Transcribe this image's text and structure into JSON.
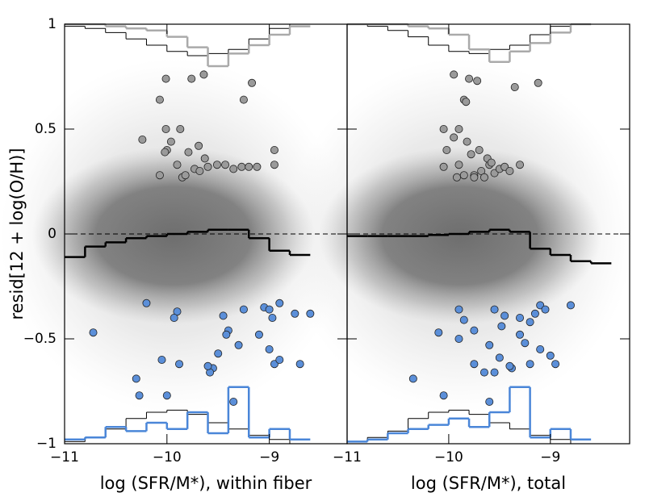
{
  "chart_data": [
    {
      "type": "scatter",
      "ylabel": "resid[12 + log(O/H)]",
      "xlabel": "log (SFR/M*), within fiber",
      "xlim": [
        -11,
        -8.24
      ],
      "xticks": [
        {
          "value": -11,
          "label": "−11"
        },
        {
          "value": -10,
          "label": "−10"
        },
        {
          "value": -9,
          "label": "−9"
        }
      ],
      "ylim": [
        -1,
        1
      ],
      "yticks": [
        {
          "value": -1,
          "label": "−1"
        },
        {
          "value": -0.5,
          "label": "−0.5"
        },
        0,
        0.5,
        1
      ],
      "hline": 0,
      "series": [
        {
          "color": "#9a9a9a",
          "x": [
            -10.01,
            -9.76,
            -9.64,
            -10.07,
            -9.25,
            -9.17,
            -10.01,
            -10.0,
            -10.24,
            -9.87,
            -9.69,
            -9.96,
            -10.02,
            -9.79,
            -9.9,
            -9.73,
            -9.68,
            -9.6,
            -9.51,
            -9.43,
            -9.35,
            -9.27,
            -9.2,
            -9.12,
            -8.95,
            -8.95,
            -9.63,
            -9.85,
            -9.82,
            -10.07
          ],
          "y": [
            0.74,
            0.74,
            0.76,
            0.64,
            0.64,
            0.72,
            0.5,
            0.4,
            0.45,
            0.5,
            0.42,
            0.44,
            0.39,
            0.39,
            0.33,
            0.31,
            0.3,
            0.32,
            0.33,
            0.33,
            0.31,
            0.32,
            0.32,
            0.32,
            0.4,
            0.33,
            0.36,
            0.27,
            0.28,
            0.28
          ]
        },
        {
          "color": "#5b8fd9",
          "x": [
            -10.2,
            -9.9,
            -9.93,
            -9.45,
            -9.4,
            -9.42,
            -9.3,
            -9.5,
            -9.55,
            -9.58,
            -9.6,
            -9.05,
            -9.0,
            -8.97,
            -9.1,
            -9.0,
            -8.95,
            -8.9,
            -8.9,
            -8.75,
            -8.6,
            -10.72,
            -10.05,
            -10.3,
            -10.27,
            -9.88,
            -10.0,
            -9.25,
            -8.7,
            -9.35
          ],
          "y": [
            -0.33,
            -0.37,
            -0.4,
            -0.39,
            -0.46,
            -0.48,
            -0.53,
            -0.57,
            -0.64,
            -0.66,
            -0.63,
            -0.35,
            -0.36,
            -0.4,
            -0.48,
            -0.55,
            -0.62,
            -0.6,
            -0.33,
            -0.38,
            -0.38,
            -0.47,
            -0.6,
            -0.69,
            -0.77,
            -0.62,
            -0.77,
            -0.36,
            -0.62,
            -0.8
          ]
        }
      ],
      "median": {
        "color": "#000000",
        "edges": [
          -11,
          -10.8,
          -10.6,
          -10.4,
          -10.2,
          -10,
          -9.8,
          -9.6,
          -9.4,
          -9.2,
          -9,
          -8.8,
          -8.6
        ],
        "values": [
          -0.11,
          -0.06,
          -0.04,
          -0.02,
          -0.01,
          0,
          0.01,
          0.02,
          0.02,
          -0.02,
          -0.08,
          -0.1
        ]
      },
      "hist_edges": [
        -11,
        -10.8,
        -10.6,
        -10.4,
        -10.2,
        -10,
        -9.8,
        -9.6,
        -9.4,
        -9.2,
        -9,
        -8.8,
        -8.6
      ],
      "histograms": [
        {
          "color": "#000000",
          "width": 1,
          "values": [
            0.99,
            0.98,
            0.96,
            0.93,
            0.9,
            0.87,
            0.85,
            0.86,
            0.88,
            0.93,
            0.98,
            1
          ]
        },
        {
          "color": "#aaaaaa",
          "width": 2.5,
          "values": [
            1,
            1,
            0.99,
            0.98,
            0.97,
            0.94,
            0.89,
            0.8,
            0.86,
            0.9,
            0.95,
            0.99
          ]
        },
        {
          "color": "#000000",
          "width": 1,
          "values": [
            -0.99,
            -0.97,
            -0.93,
            -0.88,
            -0.85,
            -0.84,
            -0.86,
            -0.9,
            -0.93,
            -0.96,
            -0.98,
            -1
          ]
        },
        {
          "color": "#4a86d8",
          "width": 2.5,
          "values": [
            -0.98,
            -0.97,
            -0.92,
            -0.94,
            -0.9,
            -0.93,
            -0.85,
            -0.95,
            -0.73,
            -0.97,
            -0.93,
            -0.98
          ]
        }
      ]
    },
    {
      "type": "scatter",
      "xlabel": "log (SFR/M*), total",
      "xlim": [
        -11,
        -8.22
      ],
      "xticks": [
        {
          "value": -11,
          "label": "−11"
        },
        {
          "value": -10,
          "label": "−10"
        },
        {
          "value": -9,
          "label": "−9"
        }
      ],
      "ylim": [
        -1,
        1
      ],
      "yticks": [
        {
          "value": -1,
          "label": "−1"
        },
        {
          "value": -0.5,
          "label": "−0.5"
        },
        0,
        0.5,
        1
      ],
      "hline": 0,
      "series": [
        {
          "color": "#9a9a9a",
          "x": [
            -9.95,
            -9.8,
            -9.72,
            -9.85,
            -9.83,
            -9.35,
            -9.12,
            -10.05,
            -9.9,
            -9.95,
            -10.02,
            -9.82,
            -9.7,
            -9.78,
            -9.9,
            -9.85,
            -9.75,
            -9.68,
            -9.6,
            -9.55,
            -9.5,
            -9.45,
            -9.4,
            -9.3,
            -9.75,
            -9.65,
            -10.05,
            -9.92,
            -9.62,
            -9.58
          ],
          "y": [
            0.76,
            0.74,
            0.73,
            0.64,
            0.63,
            0.7,
            0.72,
            0.5,
            0.5,
            0.46,
            0.4,
            0.44,
            0.4,
            0.38,
            0.33,
            0.28,
            0.28,
            0.3,
            0.33,
            0.29,
            0.31,
            0.32,
            0.3,
            0.33,
            0.27,
            0.27,
            0.32,
            0.27,
            0.36,
            0.34
          ]
        },
        {
          "color": "#5b8fd9",
          "x": [
            -9.9,
            -9.85,
            -9.55,
            -9.45,
            -9.48,
            -9.3,
            -9.25,
            -9.2,
            -9.5,
            -9.38,
            -9.4,
            -9.1,
            -9.05,
            -9.2,
            -9.15,
            -9.1,
            -9.0,
            -8.95,
            -9.6,
            -10.1,
            -9.75,
            -9.9,
            -9.6,
            -9.55,
            -10.35,
            -9.65,
            -9.75,
            -9.3,
            -8.8,
            -10.05
          ],
          "y": [
            -0.36,
            -0.41,
            -0.36,
            -0.39,
            -0.44,
            -0.48,
            -0.52,
            -0.62,
            -0.59,
            -0.64,
            -0.63,
            -0.34,
            -0.36,
            -0.42,
            -0.38,
            -0.55,
            -0.58,
            -0.62,
            -0.8,
            -0.47,
            -0.46,
            -0.5,
            -0.53,
            -0.66,
            -0.69,
            -0.66,
            -0.62,
            -0.4,
            -0.34,
            -0.77
          ]
        }
      ],
      "median": {
        "color": "#000000",
        "edges": [
          -11,
          -10.8,
          -10.6,
          -10.4,
          -10.2,
          -10,
          -9.8,
          -9.6,
          -9.4,
          -9.2,
          -9,
          -8.8,
          -8.6,
          -8.4
        ],
        "values": [
          -0.01,
          -0.01,
          -0.01,
          -0.01,
          -0.005,
          0,
          0.01,
          0.02,
          0.01,
          -0.07,
          -0.1,
          -0.13,
          -0.14
        ]
      },
      "hist_edges": [
        -11,
        -10.8,
        -10.6,
        -10.4,
        -10.2,
        -10,
        -9.8,
        -9.6,
        -9.4,
        -9.2,
        -9,
        -8.8,
        -8.6
      ],
      "histograms": [
        {
          "color": "#000000",
          "width": 1,
          "values": [
            1,
            0.99,
            0.97,
            0.94,
            0.9,
            0.87,
            0.86,
            0.88,
            0.9,
            0.95,
            0.99,
            1
          ]
        },
        {
          "color": "#aaaaaa",
          "width": 2.5,
          "values": [
            1,
            1,
            1,
            0.99,
            0.98,
            0.95,
            0.88,
            0.82,
            0.87,
            0.91,
            0.96,
            1
          ]
        },
        {
          "color": "#000000",
          "width": 1,
          "values": [
            -0.99,
            -0.97,
            -0.94,
            -0.88,
            -0.85,
            -0.84,
            -0.86,
            -0.9,
            -0.93,
            -0.96,
            -0.98,
            -1
          ]
        },
        {
          "color": "#4a86d8",
          "width": 2.5,
          "values": [
            -0.99,
            -0.98,
            -0.95,
            -0.93,
            -0.91,
            -0.88,
            -0.92,
            -0.85,
            -0.73,
            -0.97,
            -0.93,
            -0.98
          ]
        }
      ]
    }
  ]
}
